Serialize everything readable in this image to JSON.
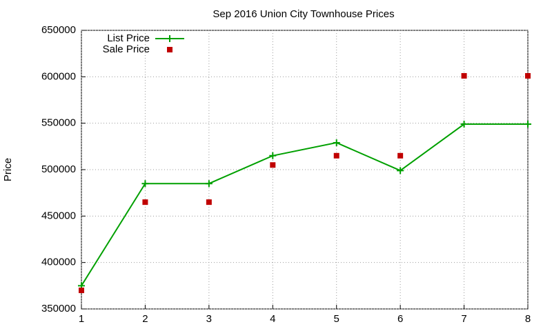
{
  "chart_data": {
    "type": "line",
    "title": "Sep 2016 Union City Townhouse Prices",
    "y_label": "Price",
    "x": [
      1,
      2,
      3,
      4,
      5,
      6,
      7,
      8
    ],
    "series": [
      {
        "name": "List Price",
        "color": "#00a000",
        "style": "line",
        "values": [
          375000,
          485000,
          485000,
          515000,
          529000,
          499000,
          549000,
          549000
        ]
      },
      {
        "name": "Sale Price",
        "color": "#c00000",
        "style": "points",
        "values": [
          370000,
          465000,
          465000,
          505000,
          515000,
          515000,
          601000,
          601000
        ]
      }
    ],
    "xlim": [
      1,
      8
    ],
    "xticks": [
      1,
      2,
      3,
      4,
      5,
      6,
      7,
      8
    ],
    "ylim": [
      350000,
      650000
    ],
    "yticks": [
      350000,
      400000,
      450000,
      500000,
      550000,
      600000,
      650000
    ],
    "grid": true,
    "legend": "top-left"
  }
}
